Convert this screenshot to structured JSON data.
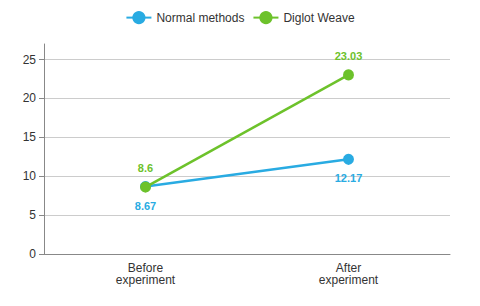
{
  "chart_data": {
    "type": "line",
    "categories": [
      "Before\nexperiment",
      "After\nexperiment"
    ],
    "series": [
      {
        "name": "Normal methods",
        "color": "#29ABE2",
        "values": [
          8.67,
          12.17
        ]
      },
      {
        "name": "Diglot Weave",
        "color": "#6DC22B",
        "values": [
          8.6,
          23.03
        ]
      }
    ],
    "ylim": [
      0,
      27
    ],
    "yticks": [
      0,
      5,
      10,
      15,
      20,
      25
    ],
    "grid": true,
    "legend": "top",
    "data_labels": true,
    "marker": "circle"
  }
}
